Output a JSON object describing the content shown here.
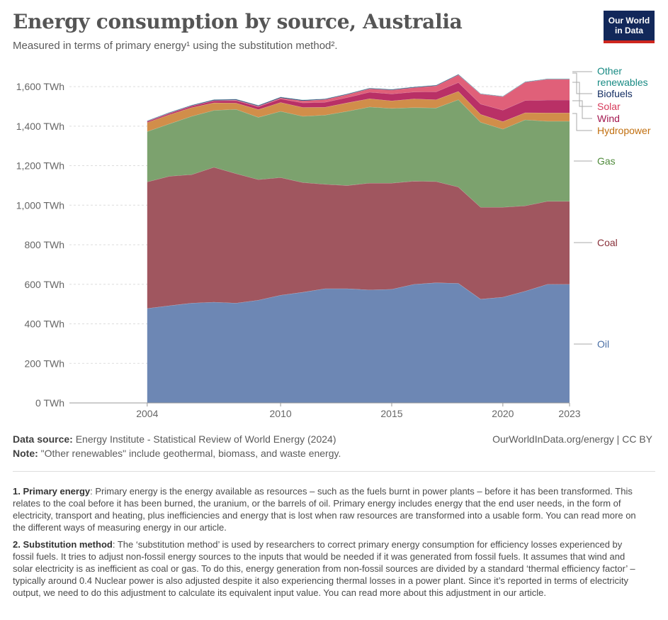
{
  "header": {
    "title": "Energy consumption by source, Australia",
    "subtitle": "Measured in terms of primary energy¹ using the substitution method².",
    "logo_line1": "Our World",
    "logo_line2": "in Data"
  },
  "chart_data": {
    "type": "area",
    "stacked": true,
    "x": [
      2004,
      2005,
      2006,
      2007,
      2008,
      2009,
      2010,
      2011,
      2012,
      2013,
      2014,
      2015,
      2016,
      2017,
      2018,
      2019,
      2020,
      2021,
      2022,
      2023
    ],
    "x_ticks": [
      "2004",
      "2010",
      "2015",
      "2020",
      "2023"
    ],
    "x_tick_values": [
      2004,
      2010,
      2015,
      2020,
      2023
    ],
    "y_ticks": [
      "0 TWh",
      "200 TWh",
      "400 TWh",
      "600 TWh",
      "800 TWh",
      "1,000 TWh",
      "1,200 TWh",
      "1,400 TWh",
      "1,600 TWh"
    ],
    "y_tick_values": [
      0,
      200,
      400,
      600,
      800,
      1000,
      1200,
      1400,
      1600
    ],
    "ylim": [
      0,
      1700
    ],
    "xlim": [
      2000.5,
      2023
    ],
    "grid": "horizontal dashed",
    "legend": "right, inline labels",
    "series": [
      {
        "name": "Oil",
        "color": "#6d87b4",
        "label_color": "#4a6fa5",
        "values": [
          478,
          492,
          505,
          510,
          505,
          520,
          545,
          560,
          578,
          578,
          572,
          575,
          600,
          608,
          605,
          525,
          535,
          565,
          600,
          600
        ]
      },
      {
        "name": "Coal",
        "color": "#a0565f",
        "label_color": "#883039",
        "values": [
          640,
          655,
          650,
          682,
          655,
          610,
          595,
          555,
          528,
          522,
          540,
          537,
          522,
          512,
          487,
          465,
          455,
          432,
          420,
          420
        ]
      },
      {
        "name": "Gas",
        "color": "#7ca26e",
        "label_color": "#4f8a3b",
        "values": [
          255,
          265,
          295,
          288,
          325,
          315,
          335,
          335,
          350,
          375,
          385,
          378,
          372,
          372,
          442,
          430,
          395,
          435,
          405,
          405
        ]
      },
      {
        "name": "Hydropower",
        "color": "#d18e4a",
        "label_color": "#c16f0f",
        "values": [
          45,
          46,
          44,
          38,
          32,
          39,
          45,
          45,
          40,
          43,
          42,
          38,
          44,
          42,
          42,
          40,
          38,
          36,
          42,
          42
        ]
      },
      {
        "name": "Wind",
        "color": "#b93066",
        "label_color": "#a3174f",
        "values": [
          6,
          7,
          8,
          10,
          12,
          14,
          18,
          23,
          25,
          27,
          33,
          35,
          35,
          40,
          45,
          52,
          58,
          62,
          65,
          65
        ]
      },
      {
        "name": "Solar",
        "color": "#e06079",
        "label_color": "#d73a5a",
        "values": [
          1,
          1,
          1,
          2,
          3,
          3,
          5,
          10,
          14,
          15,
          17,
          20,
          22,
          30,
          38,
          50,
          68,
          92,
          105,
          105
        ]
      },
      {
        "name": "Biofuels",
        "color": "#1f3a6e",
        "label_color": "#132d62",
        "values": [
          2,
          3,
          3,
          4,
          4,
          4,
          4,
          4,
          3,
          3,
          3,
          3,
          3,
          3,
          3,
          2,
          2,
          2,
          2,
          2
        ]
      },
      {
        "name": "Other renewables",
        "color": "#2b9b93",
        "label_color": "#178a83",
        "values": [
          1,
          1,
          1,
          1,
          1,
          1,
          1,
          1,
          1,
          1,
          1,
          1,
          1,
          1,
          1,
          1,
          1,
          1,
          1,
          1
        ]
      }
    ]
  },
  "legend_labels": {
    "other_line1": "Other",
    "other_line2": "renewables",
    "biofuels": "Biofuels",
    "solar": "Solar",
    "wind": "Wind",
    "hydropower": "Hydropower",
    "gas": "Gas",
    "coal": "Coal",
    "oil": "Oil"
  },
  "footer": {
    "source_label": "Data source:",
    "source_text": " Energy Institute - Statistical Review of World Energy (2024)",
    "note_label": "Note:",
    "note_text": " \"Other renewables\" include geothermal, biomass, and waste energy.",
    "license": "OurWorldInData.org/energy | CC BY"
  },
  "footnotes": {
    "fn1_label": "1. Primary energy",
    "fn1_text": ": Primary energy is the energy available as resources – such as the fuels burnt in power plants – before it has been transformed. This relates to the coal before it has been burned, the uranium, or the barrels of oil. Primary energy includes energy that the end user needs, in the form of electricity, transport and heating, plus inefficiencies and energy that is lost when raw resources are transformed into a usable form. You can read more on the different ways of measuring energy in our article.",
    "fn2_label": "2. Substitution method",
    "fn2_text": ": The ‘substitution method’ is used by researchers to correct primary energy consumption for efficiency losses experienced by fossil fuels. It tries to adjust non-fossil energy sources to the inputs that would be needed if it was generated from fossil fuels. It assumes that wind and solar electricity is as inefficient as coal or gas. To do this, energy generation from non-fossil sources are divided by a standard ‘thermal efficiency factor’ – typically around 0.4 Nuclear power is also adjusted despite it also experiencing thermal losses in a power plant. Since it’s reported in terms of electricity output, we need to do this adjustment to calculate its equivalent input value. You can read more about this adjustment in our article."
  }
}
